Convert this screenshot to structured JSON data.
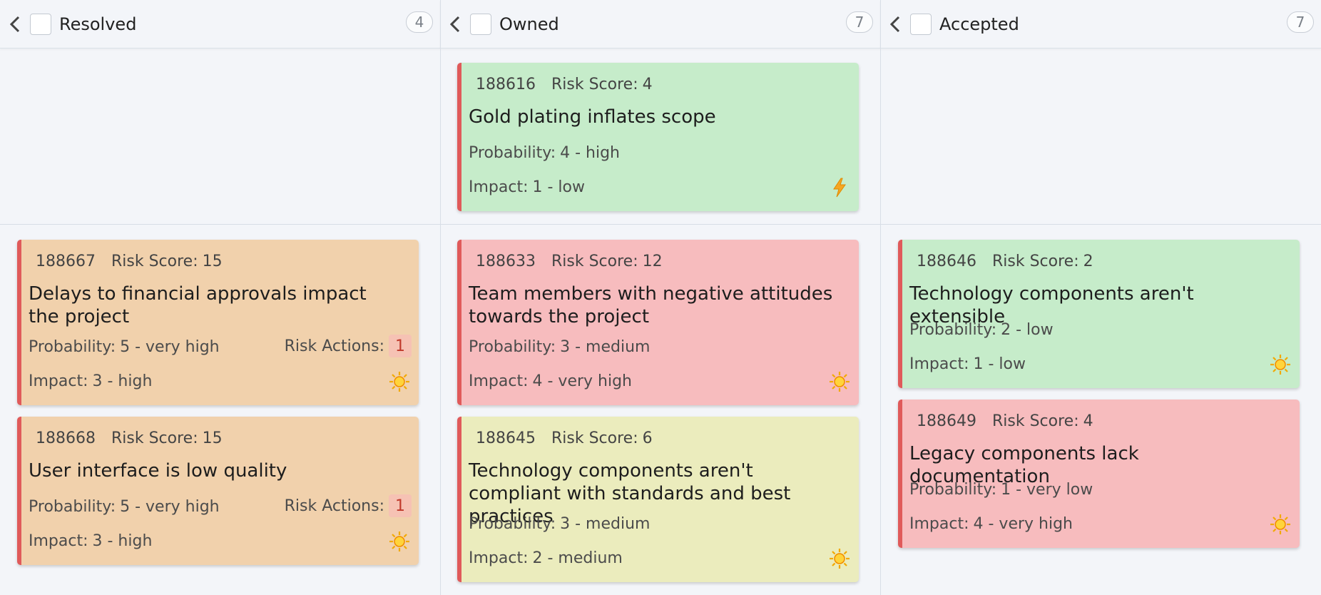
{
  "columns": [
    {
      "title": "Resolved",
      "count": "4"
    },
    {
      "title": "Owned",
      "count": "7"
    },
    {
      "title": "Accepted",
      "count": "7"
    }
  ],
  "labels": {
    "risk_score": "Risk Score:",
    "probability": "Probability:",
    "impact": "Impact:",
    "risk_actions": "Risk Actions:"
  },
  "cards": {
    "c188616": {
      "id": "188616",
      "risk_score": "4",
      "title": "Gold plating inflates scope",
      "probability": "4 - high",
      "impact": "1 - low",
      "icon": "lightning-icon",
      "color": "#c6ecca"
    },
    "c188667": {
      "id": "188667",
      "risk_score": "15",
      "title": "Delays to financial approvals impact the project",
      "probability": "5 - very high",
      "impact": "3 - high",
      "risk_actions": "1",
      "icon": "sun-icon",
      "color": "#f1d1ac"
    },
    "c188668": {
      "id": "188668",
      "risk_score": "15",
      "title": "User interface is low quality",
      "probability": "5 - very high",
      "impact": "3 - high",
      "risk_actions": "1",
      "icon": "sun-icon",
      "color": "#f1d1ac"
    },
    "c188633": {
      "id": "188633",
      "risk_score": "12",
      "title": "Team members with negative attitudes towards the project",
      "probability": "3 - medium",
      "impact": "4 - very high",
      "icon": "sun-icon",
      "color": "#f7bcbe"
    },
    "c188645": {
      "id": "188645",
      "risk_score": "6",
      "title": "Technology components aren't compliant with standards and best practices",
      "probability": "3 - medium",
      "impact": "2 - medium",
      "icon": "sun-icon",
      "color": "#ebecbd"
    },
    "c188646": {
      "id": "188646",
      "risk_score": "2",
      "title": "Technology components aren't extensible",
      "probability": "2 - low",
      "impact": "1 - low",
      "icon": "sun-icon",
      "color": "#c6ecca"
    },
    "c188649": {
      "id": "188649",
      "risk_score": "4",
      "title": "Legacy components lack documentation",
      "probability": "1 - very low",
      "impact": "4 - very high",
      "icon": "sun-icon",
      "color": "#f7bcbe"
    }
  },
  "colors": {
    "card_left_border": "#e05a5a",
    "badge_text": "#c0392b"
  }
}
